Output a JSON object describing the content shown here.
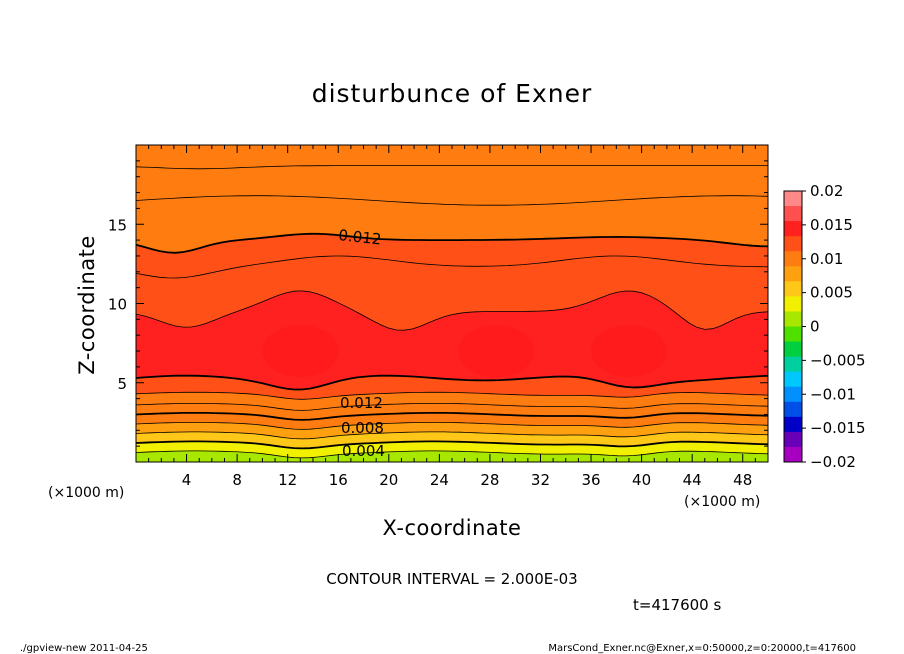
{
  "chart_data": {
    "type": "heatmap",
    "title": "disturbunce of Exner",
    "xlabel": "X-coordinate",
    "ylabel": "Z-coordinate",
    "x_unit_label": "(×1000 m)",
    "xlim": [
      0,
      50
    ],
    "ylim": [
      0,
      20
    ],
    "x_ticks": [
      "4",
      "8",
      "12",
      "16",
      "20",
      "24",
      "28",
      "32",
      "36",
      "40",
      "44",
      "48"
    ],
    "y_ticks": [
      "5",
      "10",
      "15"
    ],
    "colorbar": {
      "range": [
        -0.02,
        0.02
      ],
      "ticks": [
        "0.02",
        "0.015",
        "0.01",
        "0.005",
        "0",
        "−0.005",
        "−0.01",
        "−0.015",
        "−0.02"
      ],
      "colors": [
        "#ff8888",
        "#ff5050",
        "#ff2020",
        "#ff5018",
        "#ff7c10",
        "#ffa010",
        "#ffc818",
        "#f0f000",
        "#a8e800",
        "#50e000",
        "#00d040",
        "#00d0a0",
        "#00c8ff",
        "#0090ff",
        "#0050e8",
        "#0000c8",
        "#6800b8",
        "#a800c0"
      ]
    },
    "contour_interval_text": "CONTOUR INTERVAL = 2.000E-03",
    "contour_labels": [
      "0.012",
      "0.012",
      "0.008",
      "0.004"
    ],
    "layers_z_km": {
      "z_top_of_band": [
        0.6,
        1.2,
        1.8,
        2.4,
        3.0,
        3.6,
        4.3,
        5.3,
        9.5,
        12.3,
        14.0,
        16.5,
        18.7,
        20.0
      ],
      "band_values": [
        0.002,
        0.004,
        0.006,
        0.008,
        0.009,
        0.01,
        0.011,
        0.012,
        0.014,
        0.013,
        0.012,
        0.011,
        0.01,
        0.009
      ]
    },
    "time_text": "t=417600  s"
  },
  "footer": {
    "left": "./gpview-new   2011-04-25",
    "right": "MarsCond_Exner.nc@Exner,x=0:50000,z=0:20000,t=417600"
  }
}
